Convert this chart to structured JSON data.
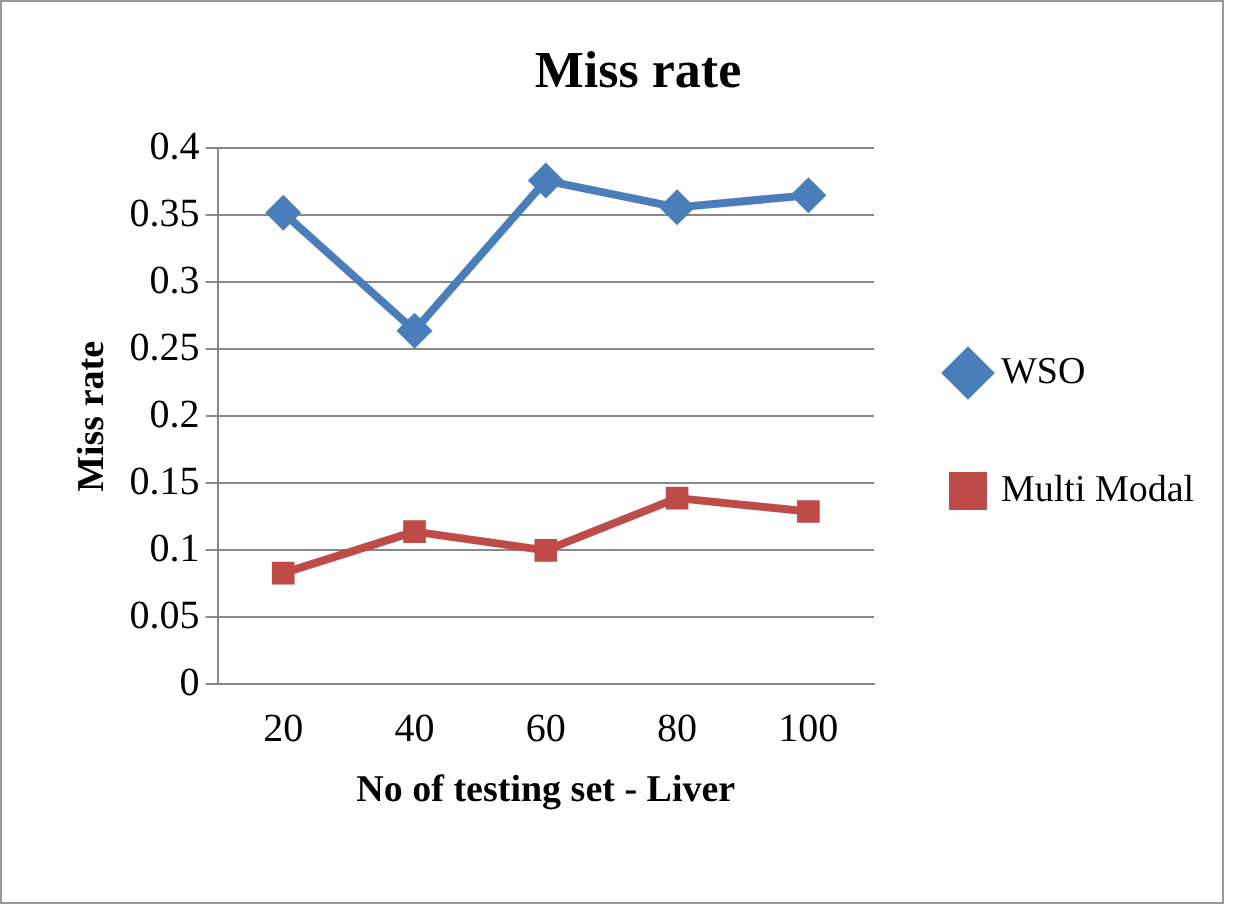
{
  "chart_data": {
    "type": "line",
    "title": "Miss rate",
    "xlabel": "No of testing set - Liver",
    "ylabel": "Miss rate",
    "categories": [
      "20",
      "40",
      "60",
      "80",
      "100"
    ],
    "series": [
      {
        "name": "WSO",
        "color": "#4a7ebb",
        "marker": "diamond",
        "values": [
          0.352,
          0.264,
          0.376,
          0.356,
          0.365
        ]
      },
      {
        "name": "Multi Modal",
        "color": "#be4b48",
        "marker": "square",
        "values": [
          0.083,
          0.114,
          0.1,
          0.139,
          0.129
        ]
      }
    ],
    "ylim": [
      0,
      0.4
    ],
    "yticks": [
      0,
      0.05,
      0.1,
      0.15,
      0.2,
      0.25,
      0.3,
      0.35,
      0.4
    ],
    "grid": "y",
    "legend": "right",
    "line_style": "solid"
  }
}
